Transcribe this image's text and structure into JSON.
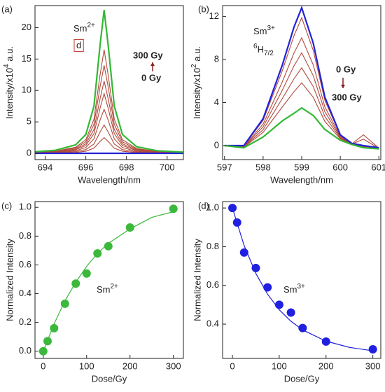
{
  "chart_data": [
    {
      "type": "line",
      "label": "(a)",
      "x_label": "Wavelength/nm",
      "y_label": {
        "text": "Intensity/x10",
        "sup": "4",
        "suffix": " a.u."
      },
      "xlim": [
        693.5,
        700.8
      ],
      "xticks": [
        694,
        696,
        698,
        700
      ],
      "ylim": [
        -1,
        23.5
      ],
      "yticks": [
        0,
        5,
        10,
        15,
        20
      ],
      "x": [
        693.5,
        694.5,
        695.5,
        696,
        696.4,
        696.7,
        696.9,
        697.1,
        697.4,
        697.8,
        698.5,
        699.5,
        700.8
      ],
      "series": [
        {
          "color": "#b04a3c",
          "values": [
            0.18,
            0.35,
            0.97,
            2.16,
            5.43,
            12.44,
            16.5,
            12.44,
            5.43,
            2.16,
            0.76,
            0.3,
            0.13
          ]
        },
        {
          "color": "#b04a3c",
          "values": [
            0.15,
            0.29,
            0.83,
            1.83,
            4.61,
            10.56,
            14,
            10.56,
            4.61,
            1.83,
            0.64,
            0.25,
            0.11
          ]
        },
        {
          "color": "#b04a3c",
          "values": [
            0.13,
            0.24,
            0.68,
            1.51,
            3.78,
            8.67,
            11.5,
            8.67,
            3.78,
            1.51,
            0.53,
            0.21,
            0.09
          ]
        },
        {
          "color": "#b04a3c",
          "values": [
            0.1,
            0.2,
            0.56,
            1.24,
            3.13,
            7.16,
            9.5,
            7.16,
            3.13,
            1.24,
            0.44,
            0.17,
            0.08
          ]
        },
        {
          "color": "#b04a3c",
          "values": [
            0.08,
            0.15,
            0.41,
            0.92,
            2.3,
            5.28,
            7,
            5.28,
            2.3,
            0.92,
            0.32,
            0.13,
            0.06
          ]
        },
        {
          "color": "#b04a3c",
          "values": [
            0.05,
            0.09,
            0.27,
            0.59,
            1.48,
            3.39,
            4.5,
            3.39,
            1.48,
            0.59,
            0.21,
            0.08,
            0.04
          ]
        },
        {
          "color": "#b04a3c",
          "values": [
            0.03,
            0.05,
            0.15,
            0.33,
            0.82,
            1.89,
            2.5,
            1.89,
            0.82,
            0.33,
            0.12,
            0.05,
            0.02
          ]
        },
        {
          "name": "0 Gy",
          "color": "#2323d8",
          "values": [
            0,
            0,
            0,
            0,
            0,
            0,
            0,
            0,
            0,
            0,
            0,
            0,
            0
          ]
        },
        {
          "name": "300 Gy",
          "color": "#33b833",
          "values": [
            0.25,
            0.48,
            1.35,
            2.99,
            7.5,
            17.19,
            22.8,
            17.19,
            7.5,
            2.99,
            1.05,
            0.41,
            0.18
          ]
        }
      ],
      "annotations": [
        {
          "text": "Sm",
          "sup": "2+"
        },
        {
          "text": "d",
          "boxed": true,
          "color": "#c0392b"
        }
      ]
    },
    {
      "type": "line",
      "label": "(b)",
      "x_label": "Wavelength/nm",
      "y_label": {
        "text": "Intensity/x10",
        "sup": "2",
        "suffix": " a.u."
      },
      "xlim": [
        596.95,
        601.05
      ],
      "xticks": [
        597,
        598,
        599,
        600,
        601
      ],
      "ylim": [
        -1.3,
        13
      ],
      "yticks": [
        0,
        4,
        8,
        12
      ],
      "x": [
        597,
        597.5,
        598,
        598.5,
        598.8,
        599,
        599.3,
        599.6,
        600,
        600.3,
        600.6,
        601
      ],
      "series": [
        {
          "color": "#b04a3c",
          "values": [
            0,
            -0.02,
            2.33,
            6.98,
            10.2,
            11.87,
            8.83,
            4.2,
            0.95,
            0.19,
            -0.02,
            -0.21
          ]
        },
        {
          "color": "#b04a3c",
          "values": [
            0,
            -0.06,
            1.99,
            5.94,
            8.6,
            10.01,
            7.49,
            3.6,
            0.85,
            0.17,
            1,
            -0.23
          ]
        },
        {
          "color": "#b04a3c",
          "values": [
            0,
            -0.09,
            1.74,
            5.16,
            7.4,
            8.62,
            6.49,
            3.15,
            0.78,
            0.16,
            -0.09,
            -0.25
          ]
        },
        {
          "color": "#b04a3c",
          "values": [
            0,
            -0.12,
            1.48,
            4.38,
            6.2,
            7.22,
            5.48,
            2.7,
            0.7,
            0.14,
            0.6,
            -0.26
          ]
        },
        {
          "color": "#b04a3c",
          "values": [
            0,
            -0.15,
            1.23,
            3.6,
            5,
            5.83,
            4.48,
            2.25,
            0.63,
            0.13,
            -0.15,
            -0.28
          ]
        },
        {
          "name": "0 Gy",
          "color": "#2323d8",
          "values": [
            0,
            0,
            2.5,
            7.5,
            11,
            12.8,
            9.5,
            4.5,
            1,
            0.2,
            0,
            -0.2
          ]
        },
        {
          "name": "300 Gy",
          "color": "#33b833",
          "values": [
            0,
            -0.2,
            0.8,
            2.3,
            3,
            3.5,
            2.8,
            1.5,
            0.5,
            0.1,
            -0.2,
            -0.3
          ]
        }
      ],
      "annotations": [
        {
          "text": "Sm",
          "sup": "3+"
        },
        {
          "pre": "6",
          "text": "H",
          "sub": "7/2"
        }
      ]
    },
    {
      "type": "scatter",
      "label": "(c)",
      "x_label": "Dose/Gy",
      "y_label": "Normalized Intensity",
      "xlim": [
        -19,
        323
      ],
      "xticks": [
        0,
        100,
        200,
        300
      ],
      "ylim": [
        -0.05,
        1.04
      ],
      "yticks": [
        {
          "value": 0,
          "label": "0.0"
        },
        0.2,
        0.4,
        0.6,
        0.8,
        {
          "value": 1,
          "label": "1.0"
        }
      ],
      "series": [
        {
          "color": "#3cb83c",
          "x": [
            0,
            10,
            25,
            50,
            75,
            100,
            125,
            150,
            200,
            300
          ],
          "values": [
            0,
            0.07,
            0.16,
            0.33,
            0.47,
            0.54,
            0.68,
            0.73,
            0.86,
            0.99
          ]
        }
      ],
      "fit": {
        "color": "#3cb83c",
        "x": [
          0,
          25,
          50,
          75,
          100,
          125,
          150,
          200,
          250,
          300
        ],
        "values": [
          0,
          0.19,
          0.35,
          0.48,
          0.59,
          0.68,
          0.75,
          0.85,
          0.93,
          0.97
        ]
      },
      "annotations": [
        {
          "text": "Sm",
          "sup": "2+"
        }
      ]
    },
    {
      "type": "scatter",
      "label": "(d)",
      "x_label": "Dose/Gy",
      "y_label": "Normalized Intensity",
      "xlim": [
        -21,
        317
      ],
      "xticks": [
        0,
        100,
        200,
        300
      ],
      "ylim": [
        0.223,
        1.033
      ],
      "yticks": [
        0.4,
        0.6,
        0.8,
        {
          "value": 1,
          "label": "1.0"
        }
      ],
      "series": [
        {
          "color": "#2020e0",
          "x": [
            0,
            10,
            25,
            50,
            75,
            100,
            125,
            150,
            200,
            300
          ],
          "values": [
            1,
            0.925,
            0.77,
            0.69,
            0.59,
            0.5,
            0.46,
            0.38,
            0.31,
            0.27
          ]
        }
      ],
      "fit": {
        "color": "#2020e0",
        "x": [
          0,
          25,
          50,
          75,
          100,
          125,
          150,
          200,
          250,
          300
        ],
        "values": [
          1,
          0.806,
          0.662,
          0.555,
          0.474,
          0.415,
          0.37,
          0.312,
          0.28,
          0.262
        ]
      },
      "annotations": [
        {
          "text": "Sm",
          "sup": "3+"
        }
      ]
    }
  ]
}
